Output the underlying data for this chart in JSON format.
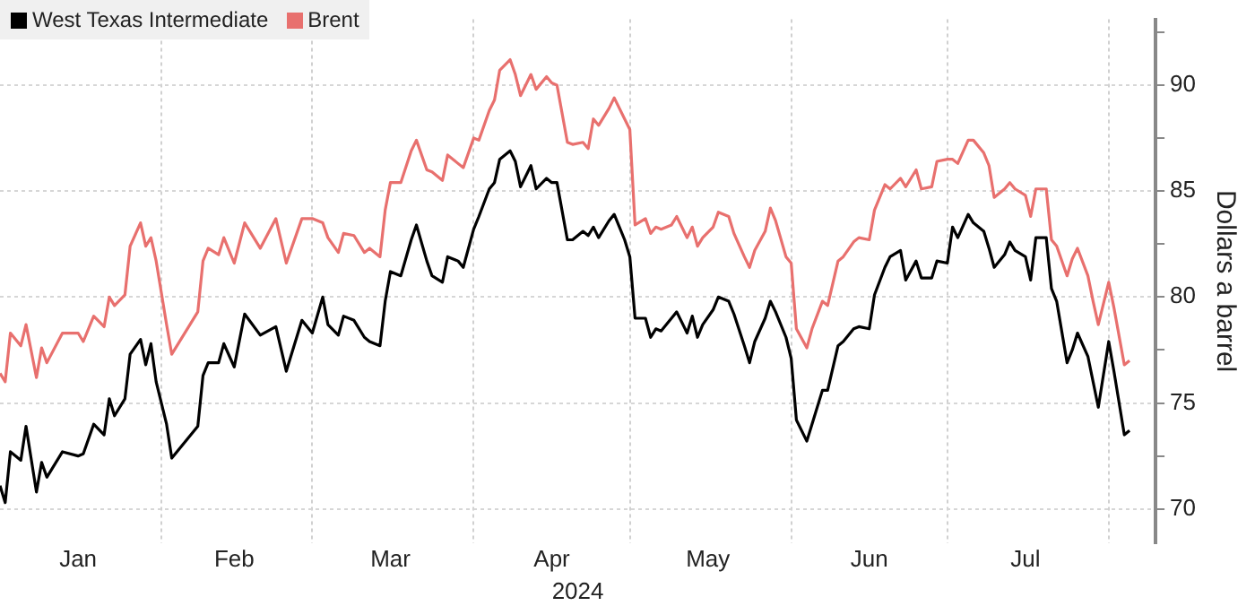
{
  "chart_data": {
    "type": "line",
    "xlabel": "2024",
    "ylabel": "Dollars a barrel",
    "grid": true,
    "legend": "top left",
    "marker": "none",
    "line_style": "solid",
    "xlim": [
      "2024-01-01",
      "2024-08-10"
    ],
    "xticks": [
      {
        "value": "2024-01-16",
        "label": "Jan"
      },
      {
        "value": "2024-02-01",
        "label": null
      },
      {
        "value": "2024-02-15",
        "label": "Feb"
      },
      {
        "value": "2024-03-01",
        "label": null
      },
      {
        "value": "2024-03-16",
        "label": "Mar"
      },
      {
        "value": "2024-04-01",
        "label": null
      },
      {
        "value": "2024-04-16",
        "label": "Apr"
      },
      {
        "value": "2024-05-01",
        "label": null
      },
      {
        "value": "2024-05-16",
        "label": "May"
      },
      {
        "value": "2024-06-01",
        "label": null
      },
      {
        "value": "2024-06-16",
        "label": "Jun"
      },
      {
        "value": "2024-07-01",
        "label": null
      },
      {
        "value": "2024-07-16",
        "label": "Jul"
      },
      {
        "value": "2024-08-01",
        "label": null
      }
    ],
    "ylim": [
      68.4,
      93.1
    ],
    "yticks": [
      70,
      {
        "value": 72.5,
        "label": null
      },
      75,
      {
        "value": 77.5,
        "label": null
      },
      80,
      {
        "value": 82.5,
        "label": null
      },
      85,
      {
        "value": 87.5,
        "label": null
      },
      90,
      {
        "value": 92.5,
        "label": null
      }
    ],
    "x": [
      "2024-01-01",
      "2024-01-02",
      "2024-01-03",
      "2024-01-05",
      "2024-01-06",
      "2024-01-08",
      "2024-01-09",
      "2024-01-10",
      "2024-01-13",
      "2024-01-16",
      "2024-01-17",
      "2024-01-19",
      "2024-01-21",
      "2024-01-22",
      "2024-01-23",
      "2024-01-25",
      "2024-01-26",
      "2024-01-28",
      "2024-01-29",
      "2024-01-30",
      "2024-01-31",
      "2024-02-02",
      "2024-02-03",
      "2024-02-08",
      "2024-02-09",
      "2024-02-10",
      "2024-02-12",
      "2024-02-13",
      "2024-02-15",
      "2024-02-17",
      "2024-02-20",
      "2024-02-23",
      "2024-02-25",
      "2024-02-28",
      "2024-03-01",
      "2024-03-03",
      "2024-03-04",
      "2024-03-06",
      "2024-03-07",
      "2024-03-09",
      "2024-03-11",
      "2024-03-12",
      "2024-03-14",
      "2024-03-15",
      "2024-03-16",
      "2024-03-18",
      "2024-03-20",
      "2024-03-21",
      "2024-03-23",
      "2024-03-24",
      "2024-03-26",
      "2024-03-27",
      "2024-03-29",
      "2024-03-30",
      "2024-04-01",
      "2024-04-02",
      "2024-04-04",
      "2024-04-05",
      "2024-04-06",
      "2024-04-08",
      "2024-04-09",
      "2024-04-10",
      "2024-04-12",
      "2024-04-13",
      "2024-04-15",
      "2024-04-16",
      "2024-04-17",
      "2024-04-19",
      "2024-04-20",
      "2024-04-22",
      "2024-04-23",
      "2024-04-24",
      "2024-04-25",
      "2024-04-27",
      "2024-04-28",
      "2024-04-30",
      "2024-05-01",
      "2024-05-02",
      "2024-05-04",
      "2024-05-05",
      "2024-05-06",
      "2024-05-07",
      "2024-05-09",
      "2024-05-10",
      "2024-05-12",
      "2024-05-13",
      "2024-05-14",
      "2024-05-15",
      "2024-05-17",
      "2024-05-18",
      "2024-05-20",
      "2024-05-21",
      "2024-05-23",
      "2024-05-24",
      "2024-05-25",
      "2024-05-27",
      "2024-05-28",
      "2024-05-29",
      "2024-05-31",
      "2024-06-01",
      "2024-06-02",
      "2024-06-04",
      "2024-06-05",
      "2024-06-07",
      "2024-06-08",
      "2024-06-10",
      "2024-06-11",
      "2024-06-13",
      "2024-06-14",
      "2024-06-16",
      "2024-06-17",
      "2024-06-19",
      "2024-06-20",
      "2024-06-22",
      "2024-06-23",
      "2024-06-25",
      "2024-06-26",
      "2024-06-28",
      "2024-06-29",
      "2024-07-01",
      "2024-07-02",
      "2024-07-03",
      "2024-07-05",
      "2024-07-06",
      "2024-07-08",
      "2024-07-09",
      "2024-07-10",
      "2024-07-12",
      "2024-07-13",
      "2024-07-14",
      "2024-07-16",
      "2024-07-17",
      "2024-07-18",
      "2024-07-20",
      "2024-07-21",
      "2024-07-22",
      "2024-07-24",
      "2024-07-25",
      "2024-07-26",
      "2024-07-28",
      "2024-07-29",
      "2024-07-30",
      "2024-08-01",
      "2024-08-02",
      "2024-08-04",
      "2024-08-05"
    ],
    "series": [
      {
        "name": "West Texas Intermediate",
        "color": "#000000",
        "values": [
          71.1,
          70.3,
          72.7,
          72.3,
          73.9,
          70.8,
          72.2,
          71.5,
          72.7,
          72.5,
          72.6,
          74.0,
          73.5,
          75.2,
          74.4,
          75.2,
          77.3,
          78.0,
          76.8,
          77.8,
          76.0,
          74.0,
          72.4,
          73.9,
          76.3,
          76.9,
          76.9,
          77.8,
          76.7,
          79.2,
          78.2,
          78.6,
          76.5,
          78.9,
          78.3,
          80.0,
          78.7,
          78.2,
          79.1,
          78.9,
          78.1,
          77.9,
          77.7,
          79.8,
          81.2,
          81.0,
          82.7,
          83.4,
          81.7,
          81.0,
          80.7,
          81.9,
          81.7,
          81.4,
          83.2,
          83.8,
          85.1,
          85.4,
          86.5,
          86.9,
          86.4,
          85.2,
          86.2,
          85.1,
          85.6,
          85.4,
          85.4,
          82.7,
          82.7,
          83.1,
          82.9,
          83.3,
          82.8,
          83.6,
          83.9,
          82.7,
          81.9,
          79.0,
          79.0,
          78.1,
          78.5,
          78.4,
          79.0,
          79.3,
          78.3,
          79.1,
          78.1,
          78.7,
          79.4,
          80.0,
          79.8,
          79.2,
          77.7,
          76.9,
          77.9,
          79.0,
          79.8,
          79.3,
          78.1,
          77.1,
          74.2,
          73.2,
          74.0,
          75.6,
          75.6,
          77.7,
          77.9,
          78.5,
          78.6,
          78.5,
          80.1,
          81.4,
          81.9,
          82.2,
          80.8,
          81.7,
          80.9,
          80.9,
          81.7,
          81.6,
          83.3,
          82.8,
          83.9,
          83.5,
          83.1,
          82.3,
          81.4,
          82.0,
          82.6,
          82.2,
          81.9,
          80.8,
          82.8,
          82.8,
          80.4,
          79.8,
          76.9,
          77.5,
          78.3,
          77.2,
          76.0,
          74.8,
          77.9,
          76.5,
          73.5,
          73.7
        ]
      },
      {
        "name": "Brent",
        "color": "#e8706e",
        "values": [
          76.4,
          76.0,
          78.3,
          77.7,
          78.7,
          76.2,
          77.6,
          76.9,
          78.3,
          78.3,
          77.9,
          79.1,
          78.6,
          80.0,
          79.6,
          80.1,
          82.4,
          83.5,
          82.4,
          82.8,
          81.7,
          78.7,
          77.3,
          79.3,
          81.7,
          82.3,
          82.0,
          82.8,
          81.6,
          83.5,
          82.3,
          83.7,
          81.6,
          83.7,
          83.7,
          83.5,
          82.8,
          82.1,
          83.0,
          82.9,
          82.1,
          82.3,
          81.9,
          84.1,
          85.4,
          85.4,
          86.9,
          87.4,
          86.0,
          85.9,
          85.5,
          86.7,
          86.3,
          86.1,
          87.5,
          87.4,
          88.8,
          89.3,
          90.7,
          91.2,
          90.5,
          89.5,
          90.5,
          89.8,
          90.4,
          90.1,
          90.0,
          87.3,
          87.2,
          87.3,
          87.0,
          88.4,
          88.1,
          88.9,
          89.4,
          88.4,
          87.9,
          83.4,
          83.7,
          83.0,
          83.3,
          83.2,
          83.4,
          83.8,
          82.8,
          83.3,
          82.4,
          82.8,
          83.3,
          84.0,
          83.8,
          83.0,
          81.9,
          81.4,
          82.2,
          83.1,
          84.2,
          83.6,
          81.9,
          81.6,
          78.5,
          77.6,
          78.5,
          79.8,
          79.6,
          81.7,
          81.9,
          82.6,
          82.8,
          82.7,
          84.1,
          85.3,
          85.1,
          85.6,
          85.2,
          86.0,
          85.1,
          85.2,
          86.4,
          86.5,
          86.5,
          86.3,
          87.4,
          87.4,
          86.8,
          86.2,
          84.7,
          85.1,
          85.4,
          85.1,
          84.8,
          83.8,
          85.1,
          85.1,
          82.7,
          82.4,
          81.0,
          81.8,
          82.3,
          81.0,
          79.8,
          78.7,
          80.7,
          79.5,
          76.8,
          77.0
        ]
      }
    ]
  }
}
